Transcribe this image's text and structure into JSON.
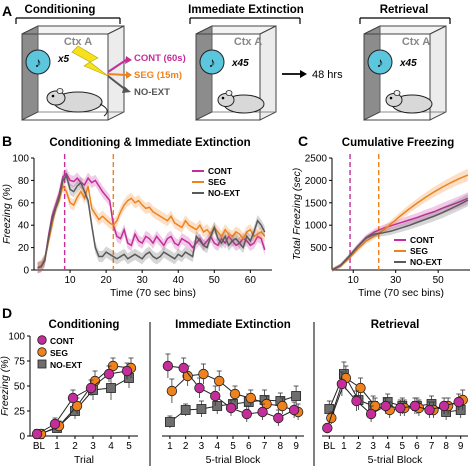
{
  "panels": {
    "A": {
      "letter": "A",
      "stages": [
        "Conditioning",
        "Immediate Extinction",
        "Retrieval"
      ],
      "context_label": "Ctx A",
      "tone_counts": [
        "x5",
        "x45",
        "x45"
      ],
      "arrow_label": "48 hrs",
      "groups": [
        {
          "label": "CONT (60s)",
          "color": "#c42d9a"
        },
        {
          "label": "SEG (15m)",
          "color": "#f0821e"
        },
        {
          "label": "NO-EXT",
          "color": "#555555"
        }
      ]
    },
    "B": {
      "letter": "B",
      "title": "Conditioning & Immediate Extinction"
    },
    "C": {
      "letter": "C",
      "title": "Cumulative Freezing"
    },
    "D": {
      "letter": "D",
      "titles": [
        "Conditioning",
        "Immediate Extinction",
        "Retrieval"
      ]
    }
  },
  "colors": {
    "CONT": "#c42d9a",
    "SEG": "#f0821e",
    "NOEXT": "#5a5a5a",
    "marker_cont": "#c42d9a",
    "marker_seg": "#f0821e"
  },
  "chart_data": [
    {
      "id": "B",
      "type": "line",
      "title": "Conditioning & Immediate Extinction",
      "xlabel": "Time (70 sec bins)",
      "ylabel": "Freezing (%)",
      "xlim": [
        0,
        66
      ],
      "ylim": [
        0,
        100
      ],
      "xticks": [
        10,
        20,
        30,
        40,
        50,
        60
      ],
      "yticks": [
        0,
        20,
        40,
        60,
        80,
        100
      ],
      "vlines": [
        {
          "x": 8.5,
          "color": "#c42d9a"
        },
        {
          "x": 22,
          "color": "#f0821e"
        }
      ],
      "legend": [
        "CONT",
        "SEG",
        "NO-EXT"
      ],
      "series": [
        {
          "name": "CONT",
          "color": "#c42d9a",
          "x": [
            1,
            2,
            3,
            4,
            5,
            6,
            7,
            8,
            9,
            10,
            11,
            12,
            13,
            14,
            15,
            16,
            17,
            18,
            19,
            20,
            21,
            22,
            23,
            24,
            25,
            26,
            27,
            28,
            29,
            30,
            31,
            32,
            33,
            34,
            35,
            36,
            37,
            38,
            39,
            40,
            41,
            42,
            43,
            44,
            45,
            46,
            47,
            48,
            49,
            50,
            51,
            52,
            53,
            54,
            55,
            56,
            57,
            58,
            59,
            60,
            61,
            62,
            63,
            64
          ],
          "y": [
            2,
            3,
            8,
            30,
            48,
            58,
            68,
            83,
            86,
            80,
            79,
            82,
            78,
            76,
            82,
            78,
            80,
            75,
            70,
            66,
            62,
            40,
            30,
            28,
            36,
            24,
            22,
            32,
            26,
            24,
            30,
            28,
            24,
            30,
            26,
            22,
            28,
            30,
            24,
            22,
            28,
            26,
            24,
            20,
            24,
            28,
            22,
            26,
            30,
            24,
            22,
            28,
            24,
            30,
            26,
            22,
            24,
            28,
            26,
            22,
            24,
            30,
            28,
            18
          ]
        },
        {
          "name": "SEG",
          "color": "#f0821e",
          "x": [
            1,
            2,
            3,
            4,
            5,
            6,
            7,
            8,
            9,
            10,
            11,
            12,
            13,
            14,
            15,
            16,
            17,
            18,
            19,
            20,
            21,
            22,
            23,
            24,
            25,
            26,
            27,
            28,
            29,
            30,
            31,
            32,
            33,
            34,
            35,
            36,
            37,
            38,
            39,
            40,
            41,
            42,
            43,
            44,
            45,
            46,
            47,
            48,
            49,
            50,
            51,
            52,
            53,
            54,
            55,
            56,
            57,
            58,
            59,
            60,
            61,
            62,
            63,
            64
          ],
          "y": [
            2,
            4,
            10,
            25,
            40,
            55,
            62,
            75,
            70,
            60,
            58,
            65,
            70,
            64,
            75,
            55,
            50,
            45,
            48,
            45,
            42,
            40,
            44,
            52,
            58,
            62,
            64,
            60,
            62,
            58,
            55,
            56,
            52,
            50,
            48,
            46,
            44,
            48,
            42,
            40,
            38,
            44,
            40,
            38,
            36,
            40,
            34,
            36,
            32,
            38,
            34,
            30,
            36,
            32,
            30,
            34,
            32,
            28,
            34,
            36,
            30,
            32,
            34,
            30
          ]
        },
        {
          "name": "NO-EXT",
          "color": "#5a5a5a",
          "x": [
            1,
            2,
            3,
            4,
            5,
            6,
            7,
            8,
            9,
            10,
            11,
            12,
            13,
            14,
            15,
            16,
            17,
            18,
            19,
            20,
            21,
            22,
            23,
            24,
            25,
            26,
            27,
            28,
            29,
            30,
            31,
            32,
            33,
            34,
            35,
            36,
            37,
            38,
            39,
            40,
            41,
            42,
            43,
            44,
            45,
            46,
            47,
            48,
            49,
            50,
            51,
            52,
            53,
            54,
            55,
            56,
            57,
            58,
            59,
            60,
            61,
            62,
            63,
            64
          ],
          "y": [
            2,
            3,
            9,
            28,
            45,
            55,
            65,
            80,
            84,
            72,
            70,
            75,
            78,
            70,
            62,
            40,
            20,
            12,
            12,
            16,
            14,
            12,
            10,
            12,
            14,
            10,
            12,
            14,
            12,
            10,
            14,
            16,
            12,
            10,
            12,
            16,
            14,
            12,
            10,
            14,
            12,
            16,
            14,
            12,
            30,
            26,
            22,
            20,
            30,
            38,
            28,
            24,
            30,
            22,
            26,
            28,
            24,
            20,
            30,
            26,
            34,
            44,
            40,
            34
          ]
        }
      ]
    },
    {
      "id": "C",
      "type": "line",
      "title": "Cumulative Freezing",
      "xlabel": "Time (70 sec bins)",
      "ylabel": "Total Freezing (sec)",
      "xlim": [
        0,
        65
      ],
      "ylim": [
        0,
        2500
      ],
      "xticks": [
        10,
        30,
        50
      ],
      "yticks": [
        500,
        1000,
        1500,
        2000,
        2500
      ],
      "vlines": [
        {
          "x": 8.5,
          "color": "#c42d9a"
        },
        {
          "x": 22,
          "color": "#f0821e"
        }
      ],
      "legend": [
        "CONT",
        "SEG",
        "NO-EXT"
      ],
      "series": [
        {
          "name": "CONT",
          "color": "#c42d9a",
          "x": [
            0,
            4,
            8,
            12,
            16,
            20,
            24,
            28,
            32,
            36,
            40,
            44,
            48,
            52,
            56,
            60,
            64
          ],
          "y": [
            0,
            100,
            300,
            520,
            720,
            850,
            930,
            990,
            1050,
            1110,
            1170,
            1240,
            1300,
            1380,
            1450,
            1520,
            1600
          ]
        },
        {
          "name": "SEG",
          "color": "#f0821e",
          "x": [
            0,
            4,
            8,
            12,
            16,
            20,
            24,
            28,
            32,
            36,
            40,
            44,
            48,
            52,
            56,
            60,
            64
          ],
          "y": [
            0,
            90,
            260,
            460,
            640,
            760,
            880,
            1040,
            1200,
            1350,
            1490,
            1620,
            1740,
            1850,
            1950,
            2040,
            2120
          ]
        },
        {
          "name": "NO-EXT",
          "color": "#5a5a5a",
          "x": [
            0,
            4,
            8,
            12,
            16,
            20,
            24,
            28,
            32,
            36,
            40,
            44,
            48,
            52,
            56,
            60,
            64
          ],
          "y": [
            0,
            100,
            300,
            520,
            710,
            800,
            830,
            870,
            930,
            990,
            1060,
            1130,
            1200,
            1280,
            1370,
            1460,
            1560
          ]
        }
      ]
    },
    {
      "id": "D",
      "type": "scatter",
      "ylabel": "Freezing (%)",
      "ylim": [
        0,
        100
      ],
      "yticks": [
        0,
        25,
        50,
        75,
        100
      ],
      "legend": [
        "CONT",
        "SEG",
        "NO-EXT"
      ],
      "subpanels": [
        {
          "title": "Conditioning",
          "xlabel": "Trial",
          "categories": [
            "BL",
            "1",
            "2",
            "3",
            "4",
            "5"
          ],
          "series": [
            {
              "name": "CONT",
              "values": [
                2,
                12,
                38,
                48,
                62,
                65
              ],
              "err": [
                2,
                6,
                8,
                8,
                8,
                8
              ]
            },
            {
              "name": "SEG",
              "values": [
                2,
                10,
                30,
                55,
                70,
                68
              ],
              "err": [
                2,
                5,
                8,
                10,
                8,
                10
              ]
            },
            {
              "name": "NO-EXT",
              "values": [
                2,
                8,
                25,
                46,
                48,
                58
              ],
              "err": [
                2,
                4,
                8,
                10,
                12,
                10
              ]
            }
          ]
        },
        {
          "title": "Immediate Extinction",
          "xlabel": "5-trial Block",
          "categories": [
            "1",
            "2",
            "3",
            "4",
            "5",
            "6",
            "7",
            "8",
            "9"
          ],
          "series": [
            {
              "name": "CONT",
              "values": [
                70,
                68,
                48,
                40,
                28,
                22,
                24,
                18,
                26
              ],
              "err": [
                12,
                10,
                10,
                10,
                8,
                8,
                8,
                8,
                8
              ]
            },
            {
              "name": "SEG",
              "values": [
                45,
                60,
                62,
                55,
                42,
                38,
                32,
                30,
                24
              ],
              "err": [
                12,
                10,
                10,
                10,
                8,
                8,
                8,
                8,
                8
              ]
            },
            {
              "name": "NO-EXT",
              "values": [
                14,
                26,
                27,
                30,
                32,
                34,
                36,
                35,
                40
              ],
              "err": [
                6,
                6,
                8,
                8,
                8,
                8,
                10,
                8,
                10
              ]
            }
          ]
        },
        {
          "title": "Retrieval",
          "xlabel": "5-trial Block",
          "categories": [
            "BL",
            "1",
            "2",
            "3",
            "4",
            "5",
            "6",
            "7",
            "8",
            "9"
          ],
          "series": [
            {
              "name": "CONT",
              "values": [
                8,
                52,
                35,
                22,
                30,
                28,
                30,
                26,
                30,
                34
              ],
              "err": [
                4,
                12,
                10,
                8,
                8,
                8,
                8,
                8,
                8,
                8
              ]
            },
            {
              "name": "SEG",
              "values": [
                18,
                58,
                48,
                30,
                26,
                28,
                28,
                26,
                30,
                36
              ],
              "err": [
                6,
                12,
                10,
                8,
                8,
                8,
                8,
                8,
                8,
                10
              ]
            },
            {
              "name": "NO-EXT",
              "values": [
                27,
                62,
                36,
                30,
                34,
                30,
                30,
                32,
                24,
                26
              ],
              "err": [
                8,
                12,
                10,
                10,
                8,
                8,
                8,
                8,
                8,
                8
              ]
            }
          ]
        }
      ]
    }
  ]
}
